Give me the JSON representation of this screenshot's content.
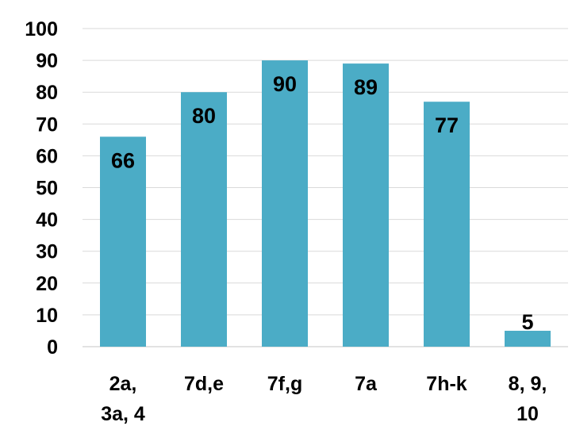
{
  "chart_data": {
    "type": "bar",
    "categories": [
      [
        "2a,",
        "3a, 4"
      ],
      [
        "7d,e"
      ],
      [
        "7f,g"
      ],
      [
        "7a"
      ],
      [
        "7h-k"
      ],
      [
        "8, 9,",
        "10"
      ]
    ],
    "values": [
      66,
      80,
      90,
      89,
      77,
      5
    ],
    "data_labels": [
      "66",
      "80",
      "90",
      "89",
      "77",
      "5"
    ],
    "ylim": [
      0,
      100
    ],
    "yticks": [
      "0",
      "10",
      "20",
      "30",
      "40",
      "50",
      "60",
      "70",
      "80",
      "90",
      "100"
    ],
    "grid": true,
    "legend": "none",
    "bar_color": "#4BACC6",
    "grid_color": "#D9D9D9"
  }
}
